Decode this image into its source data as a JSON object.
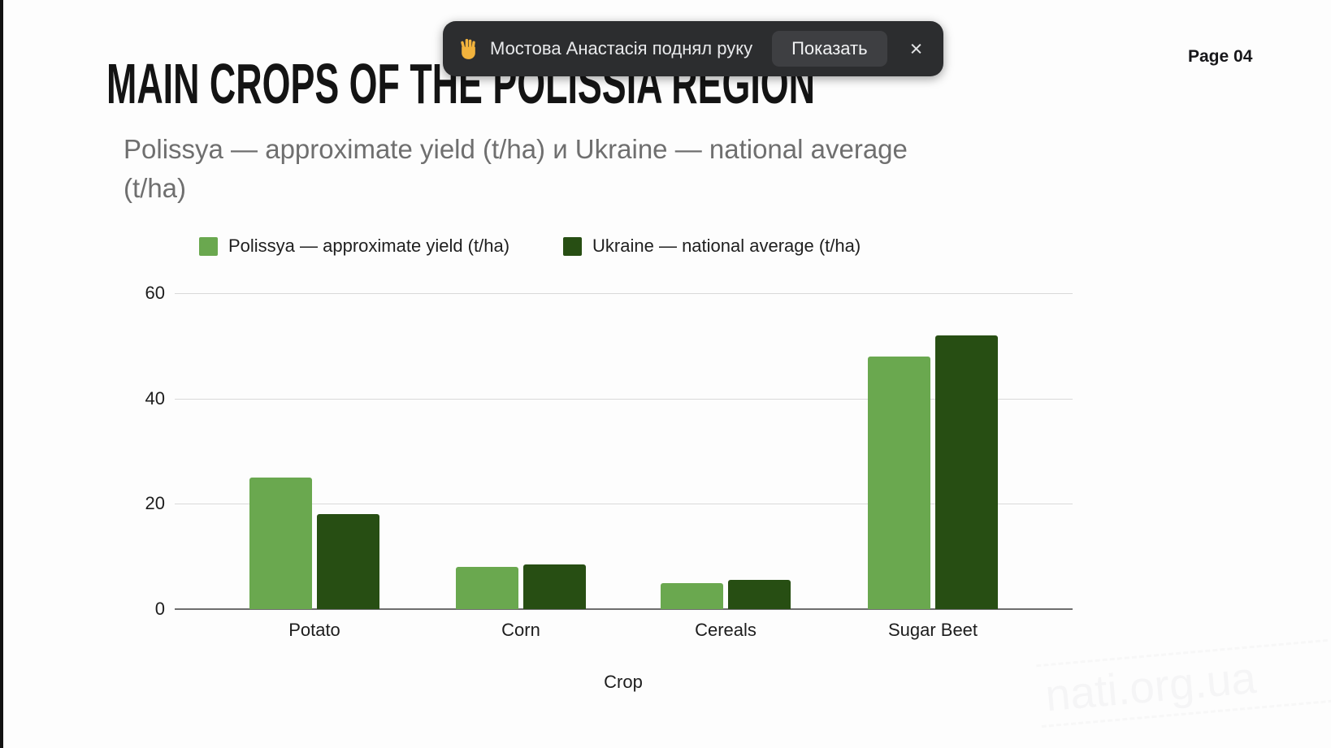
{
  "page_number": "Page 04",
  "toast": {
    "icon": "raised-hand",
    "message": "Мостова Анастасія поднял руку",
    "action_label": "Показать",
    "close_glyph": "×",
    "bg_color": "#2c2d2f",
    "hand_color": "#f2b33d"
  },
  "slide": {
    "title": "MAIN CROPS OF THE POLISSIA REGION",
    "subtitle": "Polissya — approximate yield (t/ha) и Ukraine — national average (t/ha)",
    "watermark": "nati.org.ua"
  },
  "chart_data": {
    "type": "bar",
    "title": "Polissya — approximate yield (t/ha) и Ukraine — national average (t/ha)",
    "categories": [
      "Potato",
      "Corn",
      "Cereals",
      "Sugar Beet"
    ],
    "series": [
      {
        "name": "Polissya — approximate yield (t/ha)",
        "color": "#6aa84f",
        "values": [
          25,
          8,
          5,
          48
        ]
      },
      {
        "name": "Ukraine — national average (t/ha)",
        "color": "#274e13",
        "values": [
          18,
          8.5,
          5.5,
          52
        ]
      }
    ],
    "xlabel": "Crop",
    "ylabel": "",
    "ylim": [
      0,
      60
    ],
    "yticks": [
      0,
      20,
      40,
      60
    ],
    "grid": true,
    "legend_position": "top",
    "gridline_color": "#d9d9d9",
    "axis_color": "#6e6e6e"
  }
}
